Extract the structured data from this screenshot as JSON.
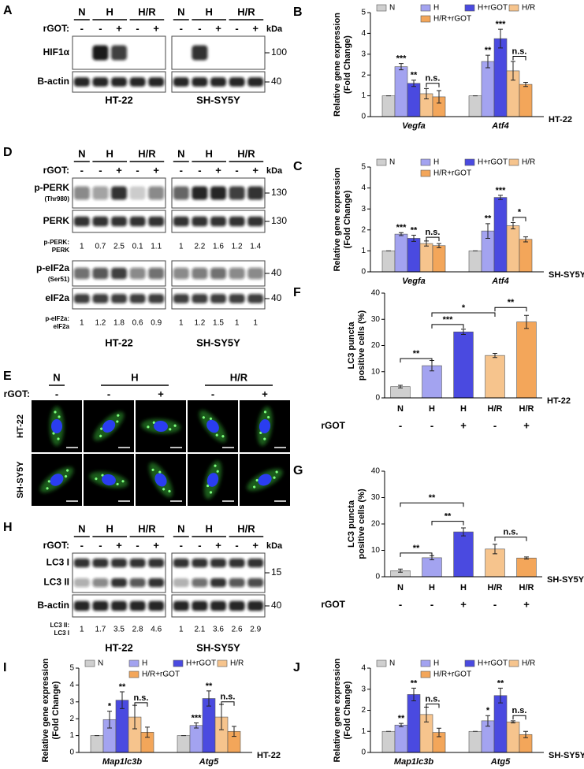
{
  "blots": [
    {
      "panel": "A",
      "groups": [
        "N",
        "H",
        "H/R"
      ],
      "treatment_label": "rGOT:",
      "signs": [
        "-",
        "-",
        "+",
        "-",
        "+"
      ],
      "kda": "kDa",
      "cells": [
        "HT-22",
        "SH-SY5Y"
      ],
      "rows": [
        {
          "label": "HIF1α",
          "marker": "100"
        },
        {
          "label": "B-actin",
          "marker": "40"
        }
      ]
    },
    {
      "panel": "D",
      "groups": [
        "N",
        "H",
        "H/R"
      ],
      "treatment_label": "rGOT:",
      "signs": [
        "-",
        "-",
        "+",
        "-",
        "+"
      ],
      "kda": "kDa",
      "cells": [
        "HT-22",
        "SH-SY5Y"
      ],
      "rows": [
        {
          "label": "p-PERK",
          "sublabel": "(Thr980)",
          "marker": "130"
        },
        {
          "label": "PERK",
          "marker": "130"
        },
        {
          "quant_labels": [
            "p-PERK:",
            "PERK"
          ],
          "values": [
            [
              1,
              0.7,
              2.5,
              0.1,
              1.1
            ],
            [
              1,
              2.2,
              1.6,
              1.2,
              1.4
            ]
          ]
        },
        {
          "label": "p-eIF2a",
          "sublabel": "(Ser51)",
          "marker": "40"
        },
        {
          "label": "eIF2a",
          "marker": "40"
        },
        {
          "quant_labels": [
            "p-eIF2a:",
            "eIF2a"
          ],
          "values": [
            [
              1,
              1.2,
              1.8,
              0.6,
              0.9
            ],
            [
              1,
              1.2,
              1.5,
              1,
              1
            ]
          ]
        }
      ]
    },
    {
      "panel": "H",
      "groups": [
        "N",
        "H",
        "H/R"
      ],
      "treatment_label": "rGOT:",
      "signs": [
        "-",
        "-",
        "+",
        "-",
        "+"
      ],
      "kda": "kDa",
      "cells": [
        "HT-22",
        "SH-SY5Y"
      ],
      "rows": [
        {
          "labels": [
            "LC3 I",
            "LC3 II"
          ],
          "marker": "15"
        },
        {
          "label": "B-actin",
          "marker": "40"
        },
        {
          "quant_labels": [
            "LC3 II:",
            "LC3 I"
          ],
          "values": [
            [
              1,
              1.7,
              3.5,
              2.8,
              4.6
            ],
            [
              1,
              2.1,
              3.6,
              2.6,
              2.9
            ]
          ]
        }
      ]
    }
  ],
  "imaging": {
    "panel": "E",
    "groups": [
      "N",
      "H",
      "H/R"
    ],
    "treatment_label": "rGOT:",
    "signs": [
      "-",
      "-",
      "+",
      "-",
      "+"
    ],
    "rows": [
      "HT-22",
      "SH-SY5Y"
    ]
  },
  "chart_data": [
    {
      "panel": "B",
      "type": "bar",
      "y_label": [
        "Relative gene expression",
        "(Fold Change)"
      ],
      "categories": [
        "Vegfa",
        "Atf4"
      ],
      "series": [
        {
          "name": "N",
          "color": "#cfcfcf",
          "values": [
            1,
            1
          ],
          "errors": [
            0,
            0
          ]
        },
        {
          "name": "H",
          "color": "#a3a3f0",
          "values": [
            2.4,
            2.65
          ],
          "errors": [
            0.15,
            0.3
          ]
        },
        {
          "name": "H+rGOT",
          "color": "#4a4ae0",
          "values": [
            1.6,
            3.75
          ],
          "errors": [
            0.15,
            0.45
          ]
        },
        {
          "name": "H/R",
          "color": "#f6c48d",
          "values": [
            1.1,
            2.2
          ],
          "errors": [
            0.25,
            0.45
          ]
        },
        {
          "name": "H/R+rGOT",
          "color": "#f3a65a",
          "values": [
            0.95,
            1.55
          ],
          "errors": [
            0.3,
            0.1
          ]
        }
      ],
      "ylim": [
        0,
        5
      ],
      "yticks": [
        0,
        1,
        2,
        3,
        4,
        5
      ],
      "annotations": [
        "***",
        "**",
        "n.s.",
        "**",
        "***",
        "n.s."
      ],
      "cell_line": "HT-22"
    },
    {
      "panel": "C",
      "type": "bar",
      "y_label": [
        "Relative gene expression",
        "(Fold Change)"
      ],
      "categories": [
        "Vegfa",
        "Atf4"
      ],
      "series": [
        {
          "name": "N",
          "color": "#cfcfcf",
          "values": [
            1,
            1
          ],
          "errors": [
            0,
            0
          ]
        },
        {
          "name": "H",
          "color": "#a3a3f0",
          "values": [
            1.8,
            1.95
          ],
          "errors": [
            0.07,
            0.35
          ]
        },
        {
          "name": "H+rGOT",
          "color": "#4a4ae0",
          "values": [
            1.6,
            3.55
          ],
          "errors": [
            0.15,
            0.1
          ]
        },
        {
          "name": "H/R",
          "color": "#f6c48d",
          "values": [
            1.35,
            2.2
          ],
          "errors": [
            0.12,
            0.15
          ]
        },
        {
          "name": "H/R+rGOT",
          "color": "#f3a65a",
          "values": [
            1.25,
            1.55
          ],
          "errors": [
            0.1,
            0.12
          ]
        }
      ],
      "ylim": [
        0,
        5
      ],
      "yticks": [
        0,
        1,
        2,
        3,
        4,
        5
      ],
      "annotations": [
        "***",
        "**",
        "n.s.",
        "**",
        "***",
        "*"
      ],
      "cell_line": "SH-SY5Y"
    },
    {
      "panel": "F",
      "type": "bar",
      "y_label": [
        "LC3 puncta",
        "positive cells (%)"
      ],
      "categories": [
        "N",
        "H",
        "H",
        "H/R",
        "H/R"
      ],
      "treatment_label": "rGOT",
      "treatment": [
        "-",
        "-",
        "+",
        "-",
        "+"
      ],
      "values": [
        4.3,
        12.3,
        25.2,
        16.2,
        29
      ],
      "errors": [
        0.5,
        2,
        1,
        0.8,
        2.5
      ],
      "colors": [
        "#cfcfcf",
        "#a3a3f0",
        "#4a4ae0",
        "#f6c48d",
        "#f3a65a"
      ],
      "ylim": [
        0,
        40
      ],
      "yticks": [
        0,
        10,
        20,
        30,
        40
      ],
      "annotations": [
        "**",
        "***",
        "*",
        "**"
      ],
      "cell_line": "HT-22"
    },
    {
      "panel": "G",
      "type": "bar",
      "y_label": [
        "LC3 puncta",
        "positive cells (%)"
      ],
      "categories": [
        "N",
        "H",
        "H",
        "H/R",
        "H/R"
      ],
      "treatment_label": "rGOT",
      "treatment": [
        "-",
        "-",
        "+",
        "-",
        "+"
      ],
      "values": [
        2.3,
        7.2,
        17,
        10.5,
        7.1
      ],
      "errors": [
        0.6,
        0.8,
        1.5,
        1.8,
        0.4
      ],
      "colors": [
        "#cfcfcf",
        "#a3a3f0",
        "#4a4ae0",
        "#f6c48d",
        "#f3a65a"
      ],
      "ylim": [
        0,
        40
      ],
      "yticks": [
        0,
        10,
        20,
        30,
        40
      ],
      "annotations": [
        "**",
        "**",
        "**",
        "n.s."
      ],
      "cell_line": "SH-SY5Y"
    },
    {
      "panel": "I",
      "type": "bar",
      "y_label": [
        "Relative gene expression",
        "(Fold Change)"
      ],
      "categories": [
        "Map1lc3b",
        "Atg5"
      ],
      "series": [
        {
          "name": "N",
          "color": "#cfcfcf",
          "values": [
            1,
            1
          ],
          "errors": [
            0,
            0
          ]
        },
        {
          "name": "H",
          "color": "#a3a3f0",
          "values": [
            1.95,
            1.6
          ],
          "errors": [
            0.5,
            0.15
          ]
        },
        {
          "name": "H+rGOT",
          "color": "#4a4ae0",
          "values": [
            3.1,
            3.2
          ],
          "errors": [
            0.5,
            0.45
          ]
        },
        {
          "name": "H/R",
          "color": "#f6c48d",
          "values": [
            2.1,
            2.1
          ],
          "errors": [
            0.7,
            0.75
          ]
        },
        {
          "name": "H/R+rGOT",
          "color": "#f3a65a",
          "values": [
            1.2,
            1.25
          ],
          "errors": [
            0.3,
            0.3
          ]
        }
      ],
      "ylim": [
        0,
        5
      ],
      "yticks": [
        0,
        1,
        2,
        3,
        4,
        5
      ],
      "annotations": [
        "*",
        "**",
        "n.s.",
        "***",
        "**",
        "n.s."
      ],
      "cell_line": "HT-22"
    },
    {
      "panel": "J",
      "type": "bar",
      "y_label": [
        "Relative gene expression",
        "(Fold Change)"
      ],
      "categories": [
        "Map1lc3b",
        "Atg5"
      ],
      "series": [
        {
          "name": "N",
          "color": "#cfcfcf",
          "values": [
            1,
            1
          ],
          "errors": [
            0,
            0
          ]
        },
        {
          "name": "H",
          "color": "#a3a3f0",
          "values": [
            1.3,
            1.5
          ],
          "errors": [
            0.08,
            0.25
          ]
        },
        {
          "name": "H+rGOT",
          "color": "#4a4ae0",
          "values": [
            2.75,
            2.7
          ],
          "errors": [
            0.3,
            0.35
          ]
        },
        {
          "name": "H/R",
          "color": "#f6c48d",
          "values": [
            1.8,
            1.45
          ],
          "errors": [
            0.35,
            0.05
          ]
        },
        {
          "name": "H/R+rGOT",
          "color": "#f3a65a",
          "values": [
            0.95,
            0.85
          ],
          "errors": [
            0.2,
            0.15
          ]
        }
      ],
      "ylim": [
        0,
        4
      ],
      "yticks": [
        0,
        1,
        2,
        3,
        4
      ],
      "annotations": [
        "**",
        "**",
        "n.s.",
        "*",
        "**",
        "n.s."
      ],
      "cell_line": "SH-SY5Y"
    }
  ]
}
